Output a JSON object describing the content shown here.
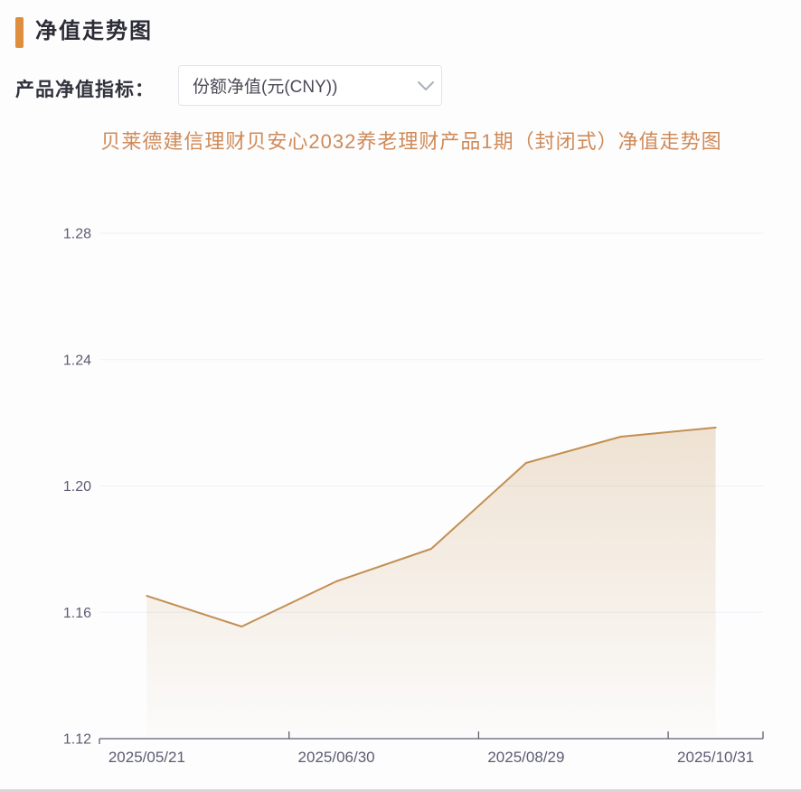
{
  "header": {
    "title": "净值走势图",
    "accent_color": "#de8f3e"
  },
  "controls": {
    "label": "产品净值指标：",
    "dropdown": {
      "value": "份额净值(元(CNY))",
      "chevron_icon": "chevron-down",
      "chevron_color": "#aab0ba"
    }
  },
  "chart_data": {
    "type": "area",
    "title": "贝莱德建信理财贝安心2032养老理财产品1期（封闭式）净值走势图",
    "series": [
      {
        "name": "份额净值(元(CNY))",
        "values": [
          1.1652,
          1.1555,
          1.1698,
          1.1801,
          1.2073,
          1.2156,
          1.2185
        ]
      }
    ],
    "x_point_count": 7,
    "x_tick_labels": [
      {
        "index": 0,
        "label": "2025/05/21"
      },
      {
        "index": 2,
        "label": "2025/06/30"
      },
      {
        "index": 4,
        "label": "2025/08/29"
      },
      {
        "index": 6,
        "label": "2025/10/31"
      }
    ],
    "ylim": [
      1.12,
      1.28
    ],
    "y_tick_labels": [
      "1.12",
      "1.16",
      "1.20",
      "1.24",
      "1.28"
    ],
    "grid": true,
    "legend": false,
    "colors": {
      "line": "#c28f52",
      "area_top": "rgba(197,148,85,0.26)",
      "area_bottom": "rgba(197,148,85,0.02)",
      "grid": "#eef1f7",
      "axis": "#5f5f70",
      "tick_text": "#5c5c72",
      "title": "#cf8a58"
    }
  }
}
